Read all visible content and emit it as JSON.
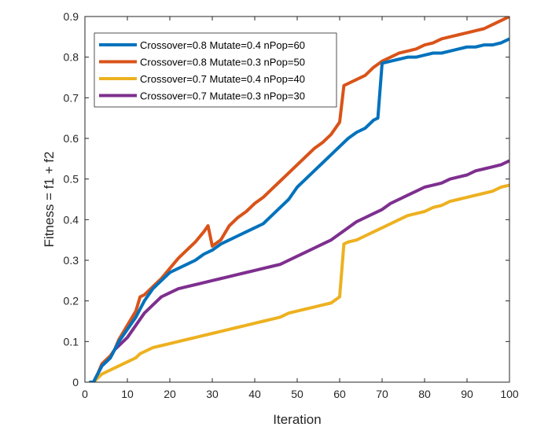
{
  "chart_data": {
    "type": "line",
    "title": "",
    "xlabel": "Iteration",
    "ylabel": "Fitness = f1 + f2",
    "xlim": [
      0,
      100
    ],
    "ylim": [
      0,
      0.9
    ],
    "xticks": [
      0,
      10,
      20,
      30,
      40,
      50,
      60,
      70,
      80,
      90,
      100
    ],
    "xtick_labels": [
      "0",
      "10",
      "20",
      "30",
      "40",
      "50",
      "60",
      "70",
      "80",
      "90",
      "100"
    ],
    "yticks": [
      0,
      0.1,
      0.2,
      0.3,
      0.4,
      0.5,
      0.6,
      0.7,
      0.8,
      0.9
    ],
    "ytick_labels": [
      "0",
      "0.1",
      "0.2",
      "0.3",
      "0.4",
      "0.5",
      "0.6",
      "0.7",
      "0.8",
      "0.9"
    ],
    "grid": false,
    "legend_position": "top-left",
    "series": [
      {
        "name": "Crossover=0.8 Mutate=0.4 nPop=60",
        "color": "#0072BD",
        "x": [
          1,
          2,
          3,
          4,
          5,
          6,
          7,
          8,
          10,
          12,
          14,
          16,
          18,
          20,
          22,
          24,
          26,
          28,
          30,
          32,
          34,
          36,
          38,
          40,
          42,
          44,
          46,
          48,
          50,
          52,
          54,
          56,
          58,
          60,
          62,
          64,
          66,
          68,
          69,
          70,
          72,
          74,
          76,
          78,
          80,
          82,
          84,
          86,
          88,
          90,
          92,
          94,
          96,
          98,
          100
        ],
        "y": [
          0,
          0,
          0.02,
          0.04,
          0.05,
          0.06,
          0.08,
          0.1,
          0.13,
          0.16,
          0.2,
          0.23,
          0.25,
          0.27,
          0.28,
          0.29,
          0.3,
          0.315,
          0.325,
          0.34,
          0.35,
          0.36,
          0.37,
          0.38,
          0.39,
          0.41,
          0.43,
          0.45,
          0.48,
          0.5,
          0.52,
          0.54,
          0.56,
          0.58,
          0.6,
          0.615,
          0.625,
          0.645,
          0.65,
          0.785,
          0.79,
          0.795,
          0.8,
          0.8,
          0.805,
          0.81,
          0.81,
          0.815,
          0.82,
          0.825,
          0.825,
          0.83,
          0.83,
          0.835,
          0.845
        ]
      },
      {
        "name": "Crossover=0.8 Mutate=0.3 nPop=50",
        "color": "#D95319",
        "x": [
          1,
          2,
          3,
          4,
          5,
          6,
          7,
          8,
          10,
          12,
          13,
          14,
          16,
          18,
          20,
          22,
          24,
          26,
          28,
          29,
          30,
          32,
          34,
          36,
          38,
          40,
          42,
          44,
          46,
          48,
          50,
          52,
          54,
          56,
          58,
          60,
          61,
          62,
          64,
          66,
          68,
          70,
          72,
          74,
          76,
          78,
          80,
          82,
          84,
          86,
          88,
          90,
          92,
          94,
          96,
          98,
          100
        ],
        "y": [
          0,
          0,
          0.02,
          0.045,
          0.055,
          0.065,
          0.08,
          0.105,
          0.14,
          0.175,
          0.21,
          0.215,
          0.235,
          0.255,
          0.28,
          0.305,
          0.325,
          0.345,
          0.37,
          0.385,
          0.335,
          0.35,
          0.385,
          0.405,
          0.42,
          0.44,
          0.455,
          0.475,
          0.495,
          0.515,
          0.535,
          0.555,
          0.575,
          0.59,
          0.61,
          0.64,
          0.73,
          0.735,
          0.745,
          0.755,
          0.775,
          0.79,
          0.8,
          0.81,
          0.815,
          0.82,
          0.83,
          0.835,
          0.845,
          0.85,
          0.855,
          0.86,
          0.865,
          0.87,
          0.88,
          0.89,
          0.9
        ]
      },
      {
        "name": "Crossover=0.7 Mutate=0.4 nPop=40",
        "color": "#EDB120",
        "x": [
          1,
          2,
          3,
          4,
          6,
          8,
          10,
          12,
          13,
          14,
          16,
          18,
          20,
          22,
          24,
          26,
          28,
          30,
          32,
          34,
          36,
          38,
          40,
          42,
          44,
          46,
          48,
          50,
          52,
          54,
          56,
          58,
          60,
          61,
          62,
          64,
          66,
          68,
          70,
          72,
          74,
          76,
          78,
          80,
          82,
          84,
          86,
          88,
          90,
          92,
          94,
          96,
          98,
          100
        ],
        "y": [
          0,
          0,
          0.01,
          0.02,
          0.03,
          0.04,
          0.05,
          0.06,
          0.07,
          0.075,
          0.085,
          0.09,
          0.095,
          0.1,
          0.105,
          0.11,
          0.115,
          0.12,
          0.125,
          0.13,
          0.135,
          0.14,
          0.145,
          0.15,
          0.155,
          0.16,
          0.17,
          0.175,
          0.18,
          0.185,
          0.19,
          0.195,
          0.21,
          0.34,
          0.345,
          0.35,
          0.36,
          0.37,
          0.38,
          0.39,
          0.4,
          0.41,
          0.415,
          0.42,
          0.43,
          0.435,
          0.445,
          0.45,
          0.455,
          0.46,
          0.465,
          0.47,
          0.48,
          0.485
        ]
      },
      {
        "name": "Crossover=0.7 Mutate=0.3 nPop=30",
        "color": "#7E2F8E",
        "x": [
          1,
          2,
          3,
          4,
          5,
          6,
          7,
          8,
          10,
          12,
          14,
          16,
          18,
          20,
          22,
          24,
          26,
          28,
          30,
          32,
          34,
          36,
          38,
          40,
          42,
          44,
          46,
          48,
          50,
          52,
          54,
          56,
          58,
          60,
          62,
          64,
          66,
          68,
          70,
          72,
          74,
          76,
          78,
          80,
          82,
          84,
          86,
          88,
          90,
          92,
          94,
          96,
          98,
          100
        ],
        "y": [
          0,
          0,
          0.02,
          0.04,
          0.05,
          0.06,
          0.08,
          0.09,
          0.11,
          0.14,
          0.17,
          0.19,
          0.21,
          0.22,
          0.23,
          0.235,
          0.24,
          0.245,
          0.25,
          0.255,
          0.26,
          0.265,
          0.27,
          0.275,
          0.28,
          0.285,
          0.29,
          0.3,
          0.31,
          0.32,
          0.33,
          0.34,
          0.35,
          0.365,
          0.38,
          0.395,
          0.405,
          0.415,
          0.425,
          0.44,
          0.45,
          0.46,
          0.47,
          0.48,
          0.485,
          0.49,
          0.5,
          0.505,
          0.51,
          0.52,
          0.525,
          0.53,
          0.535,
          0.545
        ]
      }
    ]
  }
}
